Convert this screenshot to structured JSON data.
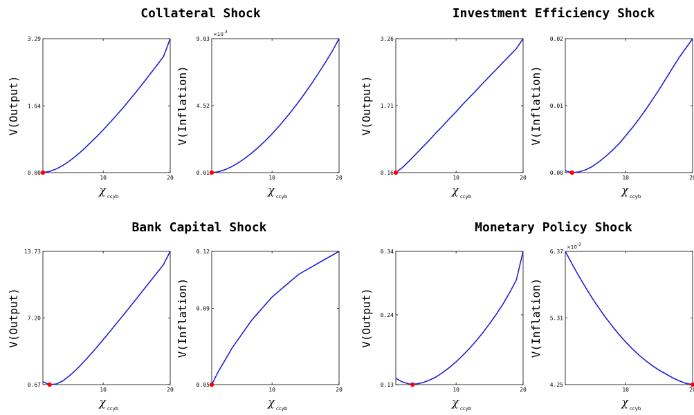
{
  "panels": [
    {
      "title": "Collateral Shock"
    },
    {
      "title": "Investment Efficiency Shock"
    },
    {
      "title": "Bank Capital Shock"
    },
    {
      "title": "Monetary Policy Shock"
    }
  ],
  "colors": {
    "line": "#1f1fd6",
    "marker": "#ff0000",
    "axis": "#000000"
  },
  "chart_data": [
    {
      "type": "line",
      "panel": 0,
      "subject": "Output",
      "ylabel": "V(Output)",
      "xlabel": "χ",
      "xlabel_sub": "ccyb",
      "exponent_label": "",
      "xlim": [
        1,
        20
      ],
      "ylim": [
        0.0,
        3.29
      ],
      "xticks": [
        10,
        20
      ],
      "xtick_labels": [
        "10",
        "20"
      ],
      "yticks": [
        0.0,
        1.64,
        3.29
      ],
      "ytick_labels": [
        "0.00",
        "1.64",
        "3.29"
      ],
      "x": [
        1,
        2,
        3,
        4,
        5,
        6,
        7,
        8,
        9,
        10,
        11,
        12,
        13,
        14,
        15,
        16,
        17,
        18,
        19,
        20
      ],
      "y": [
        0.0,
        0.03,
        0.09,
        0.18,
        0.29,
        0.42,
        0.56,
        0.72,
        0.88,
        1.05,
        1.23,
        1.41,
        1.6,
        1.8,
        2.0,
        2.21,
        2.42,
        2.63,
        2.85,
        3.29
      ],
      "min_point": {
        "x": 1,
        "y": 0.0
      }
    },
    {
      "type": "line",
      "panel": 0,
      "subject": "Inflation",
      "ylabel": "V(Inflation)",
      "xlabel": "χ",
      "xlabel_sub": "ccyb",
      "exponent_label": "×10",
      "exponent_power": "-3",
      "xlim": [
        1,
        20
      ],
      "ylim": [
        0.01,
        9.03
      ],
      "xticks": [
        10,
        20
      ],
      "xtick_labels": [
        "10",
        "20"
      ],
      "yticks": [
        0.01,
        4.52,
        9.03
      ],
      "ytick_labels": [
        "0.01",
        "4.52",
        "9.03"
      ],
      "x": [
        1,
        2,
        3,
        4,
        5,
        6,
        7,
        8,
        9,
        10,
        11,
        12,
        13,
        14,
        15,
        16,
        17,
        18,
        19,
        20
      ],
      "y": [
        0.01,
        0.07,
        0.21,
        0.42,
        0.68,
        0.99,
        1.34,
        1.73,
        2.16,
        2.62,
        3.12,
        3.65,
        4.21,
        4.8,
        5.42,
        6.07,
        6.75,
        7.46,
        8.2,
        9.03
      ],
      "min_point": {
        "x": 1,
        "y": 0.01
      }
    },
    {
      "type": "line",
      "panel": 1,
      "subject": "Output",
      "ylabel": "V(Output)",
      "xlabel": "χ",
      "xlabel_sub": "ccyb",
      "exponent_label": "",
      "xlim": [
        1,
        20
      ],
      "ylim": [
        0.16,
        3.26
      ],
      "xticks": [
        10,
        20
      ],
      "xtick_labels": [
        "10",
        "20"
      ],
      "yticks": [
        0.16,
        1.71,
        3.26
      ],
      "ytick_labels": [
        "0.16",
        "1.71",
        "3.26"
      ],
      "x": [
        1,
        2,
        3,
        4,
        5,
        6,
        7,
        8,
        9,
        10,
        11,
        12,
        13,
        14,
        15,
        16,
        17,
        18,
        19,
        20
      ],
      "y": [
        0.16,
        0.28,
        0.43,
        0.59,
        0.75,
        0.91,
        1.08,
        1.24,
        1.41,
        1.57,
        1.74,
        1.9,
        2.06,
        2.23,
        2.39,
        2.55,
        2.71,
        2.87,
        3.03,
        3.26
      ],
      "min_point": {
        "x": 1,
        "y": 0.16
      }
    },
    {
      "type": "line",
      "panel": 1,
      "subject": "Inflation",
      "ylabel": "V(Inflation)",
      "xlabel": "χ",
      "xlabel_sub": "ccyb",
      "exponent_label": "",
      "xlim": [
        1,
        20
      ],
      "ylim": [
        0.0,
        0.02
      ],
      "xticks": [
        10,
        20
      ],
      "xtick_labels": [
        "10",
        "20"
      ],
      "yticks": [
        0.0,
        0.01,
        0.02
      ],
      "ytick_labels": [
        "0.00",
        "0.01",
        "0.02"
      ],
      "x": [
        1,
        2,
        3,
        4,
        5,
        6,
        7,
        8,
        9,
        10,
        11,
        12,
        13,
        14,
        15,
        16,
        17,
        18,
        19,
        20
      ],
      "y": [
        0.0003,
        0.0,
        0.0001,
        0.0004,
        0.0009,
        0.0016,
        0.0024,
        0.0033,
        0.0043,
        0.0055,
        0.0067,
        0.008,
        0.0094,
        0.0109,
        0.0124,
        0.014,
        0.0156,
        0.0172,
        0.0186,
        0.02
      ],
      "min_point": {
        "x": 2,
        "y": 0.0
      }
    },
    {
      "type": "line",
      "panel": 2,
      "subject": "Output",
      "ylabel": "V(Output)",
      "xlabel": "χ",
      "xlabel_sub": "ccyb",
      "exponent_label": "",
      "xlim": [
        1,
        20
      ],
      "ylim": [
        0.67,
        13.73
      ],
      "xticks": [
        10,
        20
      ],
      "xtick_labels": [
        "10",
        "20"
      ],
      "yticks": [
        0.67,
        7.2,
        13.73
      ],
      "ytick_labels": [
        "0.67",
        "7.20",
        "13.73"
      ],
      "x": [
        1,
        2,
        3,
        4,
        5,
        6,
        7,
        8,
        9,
        10,
        11,
        12,
        13,
        14,
        15,
        16,
        17,
        18,
        19,
        20
      ],
      "y": [
        0.95,
        0.67,
        0.73,
        1.05,
        1.55,
        2.15,
        2.83,
        3.55,
        4.3,
        5.08,
        5.87,
        6.67,
        7.48,
        8.3,
        9.12,
        9.95,
        10.78,
        11.6,
        12.43,
        13.73
      ],
      "min_point": {
        "x": 2,
        "y": 0.67
      }
    },
    {
      "type": "line",
      "panel": 2,
      "subject": "Inflation",
      "ylabel": "V(Inflation)",
      "xlabel": "χ",
      "xlabel_sub": "ccyb",
      "exponent_label": "",
      "xlim": [
        1,
        20
      ],
      "ylim": [
        0.05,
        0.12
      ],
      "xticks": [
        10,
        20
      ],
      "xtick_labels": [
        "10",
        "20"
      ],
      "yticks": [
        0.05,
        0.09,
        0.12
      ],
      "ytick_labels": [
        "0.05",
        "0.09",
        "0.12"
      ],
      "x": [
        1,
        2,
        3,
        4,
        5,
        6,
        7,
        8,
        9,
        10,
        11,
        12,
        13,
        14,
        15,
        16,
        17,
        18,
        19,
        20
      ],
      "y": [
        0.05,
        0.057,
        0.063,
        0.069,
        0.074,
        0.079,
        0.084,
        0.088,
        0.092,
        0.096,
        0.099,
        0.102,
        0.105,
        0.108,
        0.11,
        0.112,
        0.114,
        0.116,
        0.118,
        0.12
      ],
      "min_point": {
        "x": 1,
        "y": 0.05
      }
    },
    {
      "type": "line",
      "panel": 3,
      "subject": "Output",
      "ylabel": "V(Output)",
      "xlabel": "χ",
      "xlabel_sub": "ccyb",
      "exponent_label": "",
      "xlim": [
        1,
        20
      ],
      "ylim": [
        0.13,
        0.34
      ],
      "xticks": [
        10,
        20
      ],
      "xtick_labels": [
        "10",
        "20"
      ],
      "yticks": [
        0.13,
        0.24,
        0.34
      ],
      "ytick_labels": [
        "0.13",
        "0.24",
        "0.34"
      ],
      "x": [
        1,
        2,
        3,
        4,
        5,
        6,
        7,
        8,
        9,
        10,
        11,
        12,
        13,
        14,
        15,
        16,
        17,
        18,
        19,
        20
      ],
      "y": [
        0.14,
        0.134,
        0.131,
        0.131,
        0.133,
        0.137,
        0.142,
        0.149,
        0.157,
        0.166,
        0.176,
        0.187,
        0.199,
        0.212,
        0.226,
        0.241,
        0.257,
        0.275,
        0.295,
        0.34
      ],
      "min_point": {
        "x": 3.5,
        "y": 0.13
      }
    },
    {
      "type": "line",
      "panel": 3,
      "subject": "Inflation",
      "ylabel": "V(Inflation)",
      "xlabel": "χ",
      "xlabel_sub": "ccyb",
      "exponent_label": "×10",
      "exponent_power": "-3",
      "xlim": [
        1,
        20
      ],
      "ylim": [
        4.25,
        6.37
      ],
      "xticks": [
        10,
        20
      ],
      "xtick_labels": [
        "10",
        "20"
      ],
      "yticks": [
        4.25,
        5.31,
        6.37
      ],
      "ytick_labels": [
        "4.25",
        "5.31",
        "6.37"
      ],
      "x": [
        1,
        2,
        3,
        4,
        5,
        6,
        7,
        8,
        9,
        10,
        11,
        12,
        13,
        14,
        15,
        16,
        17,
        18,
        19,
        20
      ],
      "y": [
        6.37,
        6.17,
        5.98,
        5.8,
        5.63,
        5.47,
        5.32,
        5.18,
        5.05,
        4.93,
        4.82,
        4.72,
        4.63,
        4.55,
        4.48,
        4.42,
        4.36,
        4.31,
        4.27,
        4.25
      ],
      "min_point": {
        "x": 20,
        "y": 4.25
      }
    }
  ]
}
